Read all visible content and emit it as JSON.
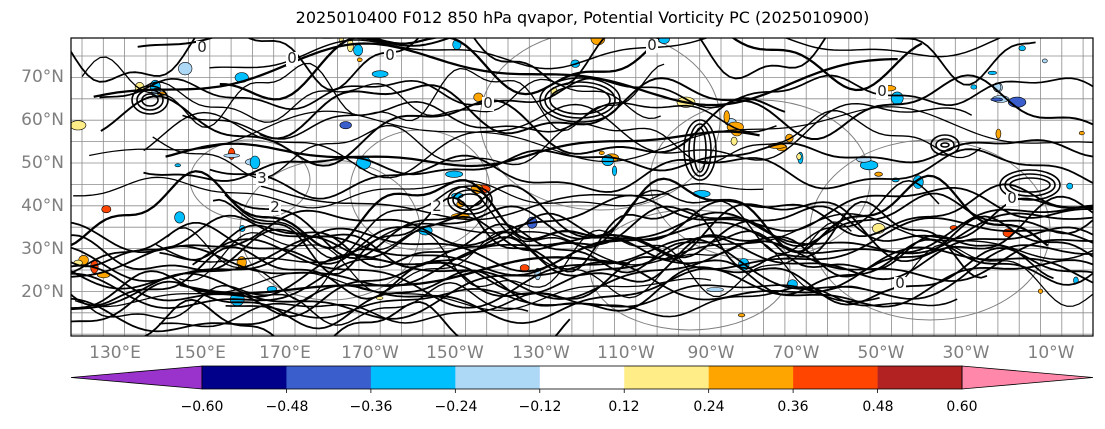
{
  "title": "2025010400 F012 850 hPa qvapor, Potential Vorticity PC (2025010900)",
  "map": {
    "lat_labels": [
      "70°N",
      "60°N",
      "50°N",
      "40°N",
      "30°N",
      "20°N"
    ],
    "lon_labels": [
      "130°E",
      "150°E",
      "170°E",
      "170°W",
      "150°W",
      "130°W",
      "110°W",
      "90°W",
      "70°W",
      "50°W",
      "30°W",
      "10°W"
    ],
    "contour_labels": [
      "0",
      "0",
      "0",
      "0",
      "0",
      "3",
      "2",
      "2",
      "0",
      "0",
      "0"
    ],
    "frame_color": "#000000",
    "grid_color": "#8c8c8c",
    "contour_color": "#000000",
    "background_contour_color": "#808080"
  },
  "colorbar": {
    "colors": [
      "#9933cc",
      "#00008b",
      "#3a5fcd",
      "#00bfff",
      "#add8f6",
      "#ffffff",
      "#ffee88",
      "#ffa500",
      "#ff4500",
      "#b22222",
      "#ff88aa"
    ],
    "tick_labels": [
      "−0.60",
      "−0.48",
      "−0.36",
      "−0.24",
      "−0.12",
      "0.12",
      "0.24",
      "0.36",
      "0.48",
      "0.60"
    ],
    "extend": "both"
  }
}
